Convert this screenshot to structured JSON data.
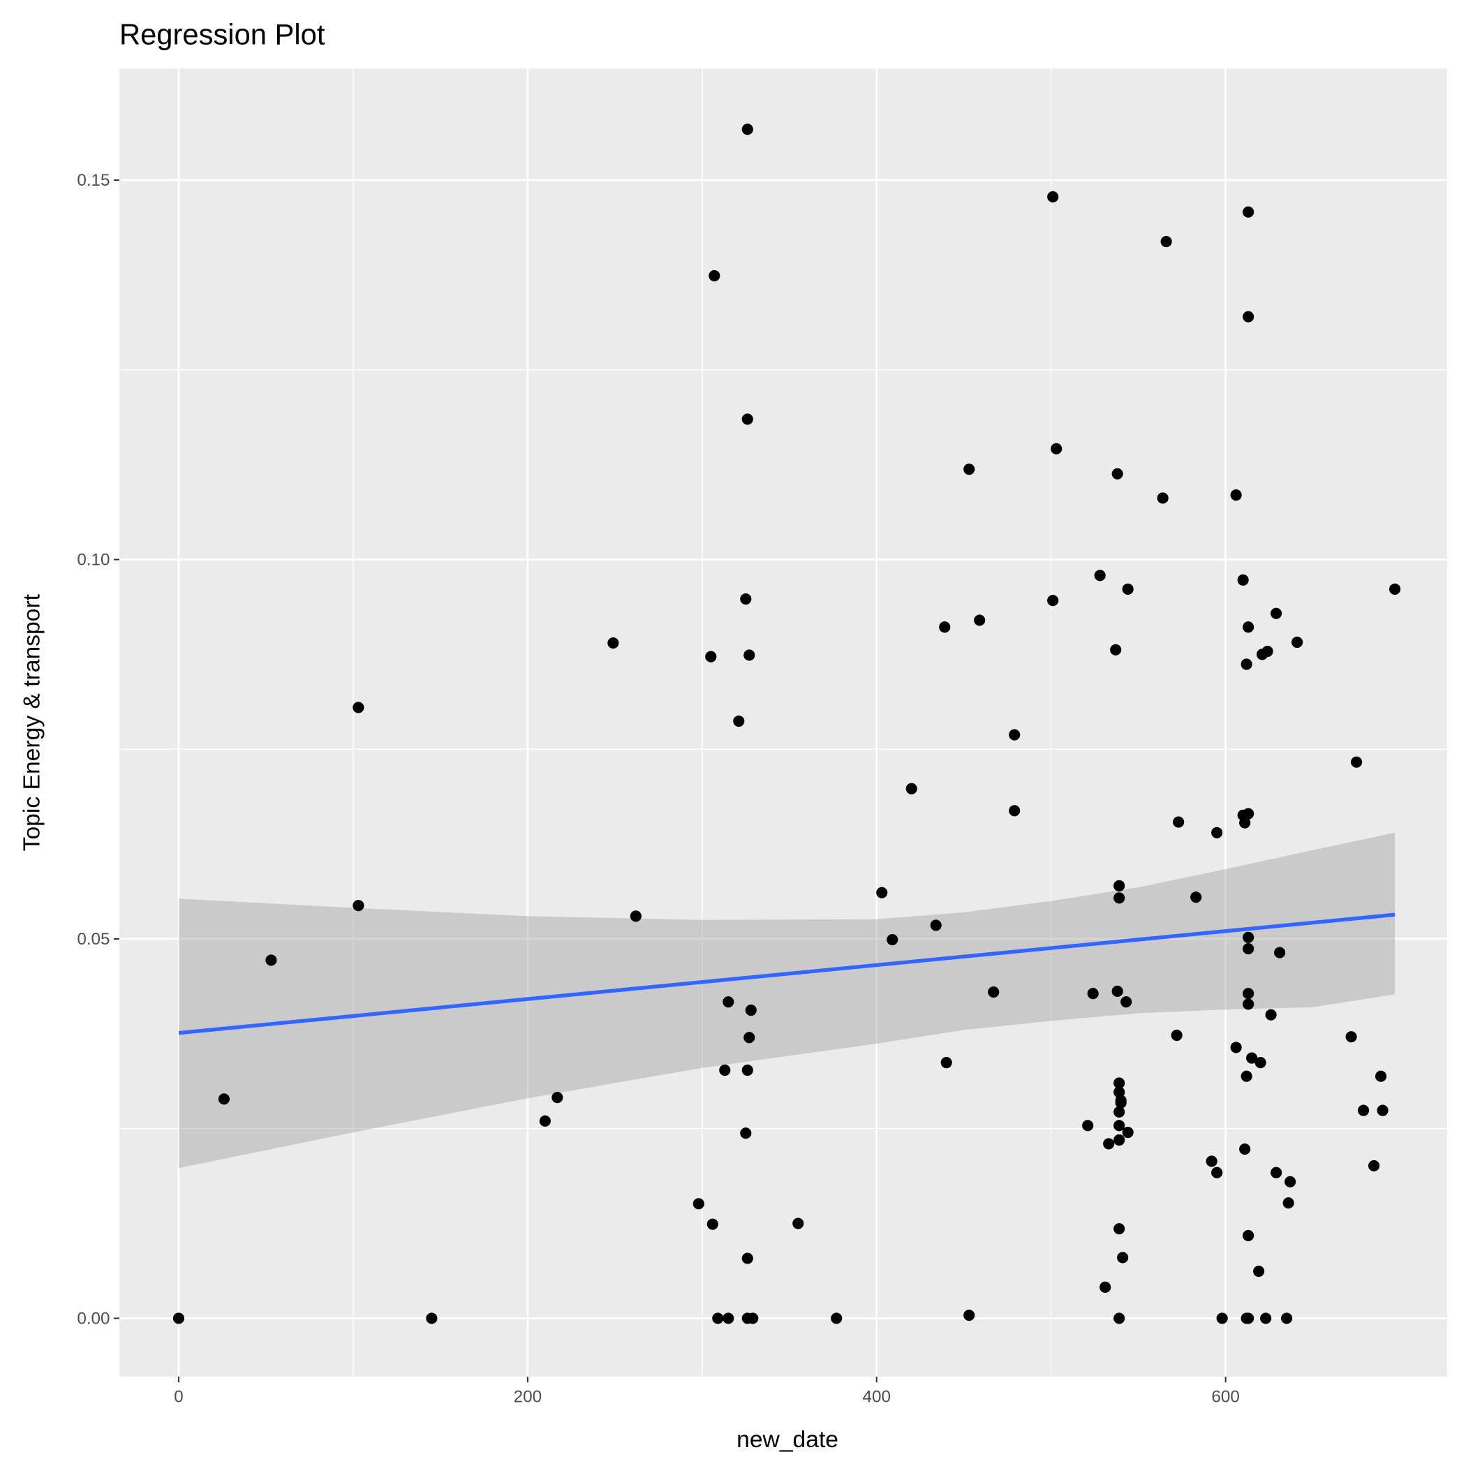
{
  "chart_data": {
    "type": "scatter",
    "title": "Regression Plot",
    "xlabel": "new_date",
    "ylabel": "Topic Energy & transport",
    "xlim": [
      -34,
      727
    ],
    "ylim": [
      -0.0077,
      0.1647
    ],
    "x_ticks": [
      0,
      200,
      400,
      600
    ],
    "x_tick_labels": [
      "0",
      "200",
      "400",
      "600"
    ],
    "y_ticks": [
      0,
      0.05,
      0.1,
      0.15
    ],
    "y_tick_labels": [
      "0.00",
      "0.05",
      "0.10",
      "0.15"
    ],
    "grid": true,
    "colors": {
      "panel": "#ebebeb",
      "grid": "#ffffff",
      "point": "#000000",
      "line": "#3366ff",
      "ribbon": "#999999"
    },
    "points": [
      [
        326,
        0.1567
      ],
      [
        501,
        0.1478
      ],
      [
        613,
        0.1458
      ],
      [
        566,
        0.1419
      ],
      [
        307,
        0.1374
      ],
      [
        613,
        0.132
      ],
      [
        326,
        0.1185
      ],
      [
        503,
        0.1146
      ],
      [
        453,
        0.1119
      ],
      [
        538,
        0.1113
      ],
      [
        564,
        0.1081
      ],
      [
        606,
        0.1085
      ],
      [
        528,
        0.0979
      ],
      [
        610,
        0.0973
      ],
      [
        544,
        0.0961
      ],
      [
        697,
        0.0961
      ],
      [
        325,
        0.0948
      ],
      [
        501,
        0.0946
      ],
      [
        459,
        0.092
      ],
      [
        439,
        0.0911
      ],
      [
        613,
        0.0911
      ],
      [
        629,
        0.0929
      ],
      [
        249,
        0.089
      ],
      [
        641,
        0.0891
      ],
      [
        537,
        0.0881
      ],
      [
        305,
        0.0872
      ],
      [
        327,
        0.0874
      ],
      [
        624,
        0.0879
      ],
      [
        621,
        0.0875
      ],
      [
        612,
        0.0862
      ],
      [
        103,
        0.0805
      ],
      [
        321,
        0.0787
      ],
      [
        479,
        0.0769
      ],
      [
        675,
        0.0733
      ],
      [
        420,
        0.0698
      ],
      [
        479,
        0.0669
      ],
      [
        613,
        0.0665
      ],
      [
        610,
        0.0663
      ],
      [
        611,
        0.0653
      ],
      [
        573,
        0.0654
      ],
      [
        595,
        0.064
      ],
      [
        403,
        0.0561
      ],
      [
        539,
        0.057
      ],
      [
        539,
        0.0554
      ],
      [
        583,
        0.0555
      ],
      [
        103,
        0.0544
      ],
      [
        262,
        0.053
      ],
      [
        434,
        0.0518
      ],
      [
        409,
        0.0499
      ],
      [
        613,
        0.0502
      ],
      [
        613,
        0.0487
      ],
      [
        631,
        0.0482
      ],
      [
        53,
        0.0472
      ],
      [
        467,
        0.043
      ],
      [
        524,
        0.0428
      ],
      [
        538,
        0.0431
      ],
      [
        613,
        0.0428
      ],
      [
        315,
        0.0417
      ],
      [
        543,
        0.0417
      ],
      [
        613,
        0.0414
      ],
      [
        328,
        0.0406
      ],
      [
        626,
        0.04
      ],
      [
        327,
        0.037
      ],
      [
        572,
        0.0373
      ],
      [
        672,
        0.0371
      ],
      [
        606,
        0.0357
      ],
      [
        440,
        0.0337
      ],
      [
        615,
        0.0343
      ],
      [
        620,
        0.0337
      ],
      [
        313,
        0.0327
      ],
      [
        326,
        0.0327
      ],
      [
        612,
        0.0319
      ],
      [
        689,
        0.0319
      ],
      [
        539,
        0.031
      ],
      [
        539,
        0.0298
      ],
      [
        540,
        0.0287
      ],
      [
        540,
        0.0284
      ],
      [
        539,
        0.0272
      ],
      [
        26,
        0.0289
      ],
      [
        217,
        0.0291
      ],
      [
        210,
        0.026
      ],
      [
        679,
        0.0274
      ],
      [
        690,
        0.0274
      ],
      [
        521,
        0.0254
      ],
      [
        539,
        0.0254
      ],
      [
        544,
        0.0245
      ],
      [
        325,
        0.0244
      ],
      [
        539,
        0.0235
      ],
      [
        533,
        0.023
      ],
      [
        611,
        0.0223
      ],
      [
        592,
        0.0207
      ],
      [
        595,
        0.0192
      ],
      [
        629,
        0.0192
      ],
      [
        685,
        0.0201
      ],
      [
        637,
        0.018
      ],
      [
        298,
        0.0151
      ],
      [
        636,
        0.0152
      ],
      [
        306,
        0.0124
      ],
      [
        355,
        0.0125
      ],
      [
        539,
        0.0118
      ],
      [
        613,
        0.0109
      ],
      [
        326,
        0.0079
      ],
      [
        541,
        0.008
      ],
      [
        619,
        0.0062
      ],
      [
        531,
        0.0041
      ],
      [
        453,
        0.0004
      ],
      [
        0,
        0
      ],
      [
        145,
        0
      ],
      [
        309,
        0
      ],
      [
        315,
        0
      ],
      [
        326,
        0
      ],
      [
        329,
        0
      ],
      [
        377,
        0
      ],
      [
        539,
        0
      ],
      [
        598,
        0
      ],
      [
        612,
        0
      ],
      [
        613,
        0
      ],
      [
        623,
        0
      ],
      [
        635,
        0
      ]
    ],
    "regression_line": [
      [
        0,
        0.0376
      ],
      [
        697,
        0.0532
      ]
    ],
    "confidence_band": [
      [
        0,
        0.0198,
        0.0553
      ],
      [
        100,
        0.0245,
        0.0541
      ],
      [
        200,
        0.029,
        0.053
      ],
      [
        300,
        0.033,
        0.0525
      ],
      [
        400,
        0.0362,
        0.0526
      ],
      [
        450,
        0.038,
        0.0535
      ],
      [
        500,
        0.0392,
        0.055
      ],
      [
        550,
        0.0402,
        0.0568
      ],
      [
        600,
        0.0407,
        0.0592
      ],
      [
        650,
        0.041,
        0.0617
      ],
      [
        697,
        0.0427,
        0.064
      ]
    ]
  }
}
